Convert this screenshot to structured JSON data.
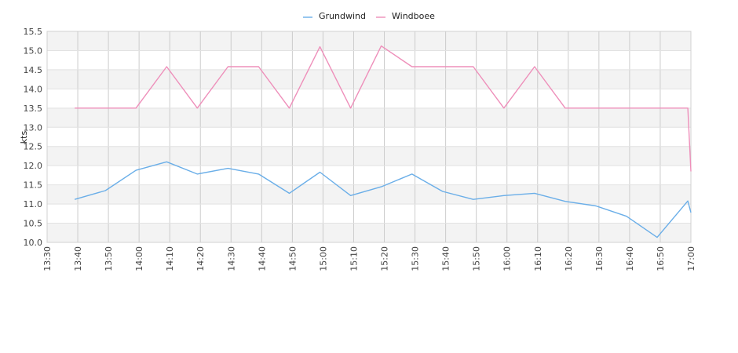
{
  "chart_data": {
    "type": "line",
    "ylabel": "kts",
    "ylim": [
      10.0,
      15.5
    ],
    "yticks": [
      "10.0",
      "10.5",
      "11.0",
      "11.5",
      "12.0",
      "12.5",
      "13.0",
      "13.5",
      "14.0",
      "14.5",
      "15.0",
      "15.5"
    ],
    "xlim": [
      "13:30",
      "17:00"
    ],
    "xticks": [
      "13:30",
      "13:40",
      "13:50",
      "14:00",
      "14:10",
      "14:20",
      "14:30",
      "14:40",
      "14:50",
      "15:00",
      "15:10",
      "15:20",
      "15:30",
      "15:40",
      "15:50",
      "16:00",
      "16:10",
      "16:20",
      "16:30",
      "16:40",
      "16:50",
      "17:00"
    ],
    "grid": true,
    "legend_position": "top",
    "series": [
      {
        "name": "Grundwind",
        "color": "#6aaee8",
        "points": [
          [
            "13:39",
            11.12
          ],
          [
            "13:49",
            11.35
          ],
          [
            "13:59",
            11.88
          ],
          [
            "14:09",
            12.1
          ],
          [
            "14:19",
            11.78
          ],
          [
            "14:29",
            11.93
          ],
          [
            "14:39",
            11.78
          ],
          [
            "14:49",
            11.28
          ],
          [
            "14:59",
            11.83
          ],
          [
            "15:09",
            11.22
          ],
          [
            "15:19",
            11.45
          ],
          [
            "15:29",
            11.78
          ],
          [
            "15:39",
            11.33
          ],
          [
            "15:49",
            11.12
          ],
          [
            "15:59",
            11.22
          ],
          [
            "16:09",
            11.28
          ],
          [
            "16:19",
            11.07
          ],
          [
            "16:29",
            10.95
          ],
          [
            "16:39",
            10.68
          ],
          [
            "16:49",
            10.13
          ],
          [
            "16:59",
            11.08
          ],
          [
            "17:00",
            10.78
          ]
        ]
      },
      {
        "name": "Windboee",
        "color": "#ee8fba",
        "points": [
          [
            "13:39",
            13.5
          ],
          [
            "13:49",
            13.5
          ],
          [
            "13:59",
            13.5
          ],
          [
            "14:09",
            14.58
          ],
          [
            "14:19",
            13.5
          ],
          [
            "14:29",
            14.58
          ],
          [
            "14:39",
            14.58
          ],
          [
            "14:49",
            13.5
          ],
          [
            "14:59",
            15.1
          ],
          [
            "15:09",
            13.5
          ],
          [
            "15:19",
            15.12
          ],
          [
            "15:29",
            14.58
          ],
          [
            "15:39",
            14.58
          ],
          [
            "15:49",
            14.58
          ],
          [
            "15:59",
            13.5
          ],
          [
            "16:09",
            14.58
          ],
          [
            "16:19",
            13.5
          ],
          [
            "16:29",
            13.5
          ],
          [
            "16:39",
            13.5
          ],
          [
            "16:49",
            13.5
          ],
          [
            "16:59",
            13.5
          ],
          [
            "17:00",
            11.85
          ]
        ]
      }
    ]
  }
}
